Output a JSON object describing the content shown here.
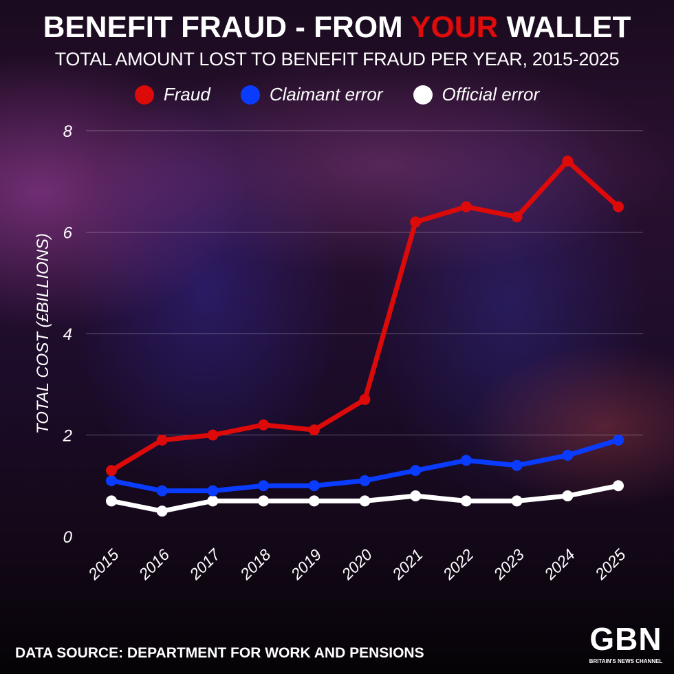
{
  "header": {
    "title_part1": "BENEFIT FRAUD - FROM ",
    "title_highlight": "YOUR",
    "title_part2": " WALLET",
    "subtitle": "TOTAL AMOUNT LOST TO BENEFIT FRAUD PER YEAR, 2015-2025"
  },
  "footer": {
    "source": "DATA SOURCE: DEPARTMENT FOR WORK AND PENSIONS",
    "logo_text": "GBN",
    "logo_tagline": "BRITAIN'S NEWS CHANNEL"
  },
  "colors": {
    "highlight": "#e00b0b",
    "fraud": "#dd0a0a",
    "claimant": "#0a3cff",
    "official": "#ffffff"
  },
  "chart_data": {
    "type": "line",
    "title": "BENEFIT FRAUD - FROM YOUR WALLET",
    "subtitle": "TOTAL AMOUNT LOST TO BENEFIT FRAUD PER YEAR, 2015-2025",
    "xlabel": "",
    "ylabel": "TOTAL COST (£BILLIONS)",
    "ylim": [
      0,
      8
    ],
    "yticks": [
      "0",
      "2",
      "4",
      "6",
      "8"
    ],
    "grid": true,
    "legend_placement": "top",
    "x": [
      "2015",
      "2016",
      "2017",
      "2018",
      "2019",
      "2020",
      "2021",
      "2022",
      "2023",
      "2024",
      "2025"
    ],
    "series": [
      {
        "name": "Fraud",
        "color": "#dd0a0a",
        "values": [
          1.3,
          1.9,
          2.0,
          2.2,
          2.1,
          2.7,
          6.2,
          6.5,
          6.3,
          7.4,
          6.5
        ]
      },
      {
        "name": "Claimant error",
        "color": "#0a3cff",
        "values": [
          1.1,
          0.9,
          0.9,
          1.0,
          1.0,
          1.1,
          1.3,
          1.5,
          1.4,
          1.6,
          1.9
        ]
      },
      {
        "name": "Official error",
        "color": "#ffffff",
        "values": [
          0.7,
          0.5,
          0.7,
          0.7,
          0.7,
          0.7,
          0.8,
          0.7,
          0.7,
          0.8,
          1.0
        ]
      }
    ]
  }
}
